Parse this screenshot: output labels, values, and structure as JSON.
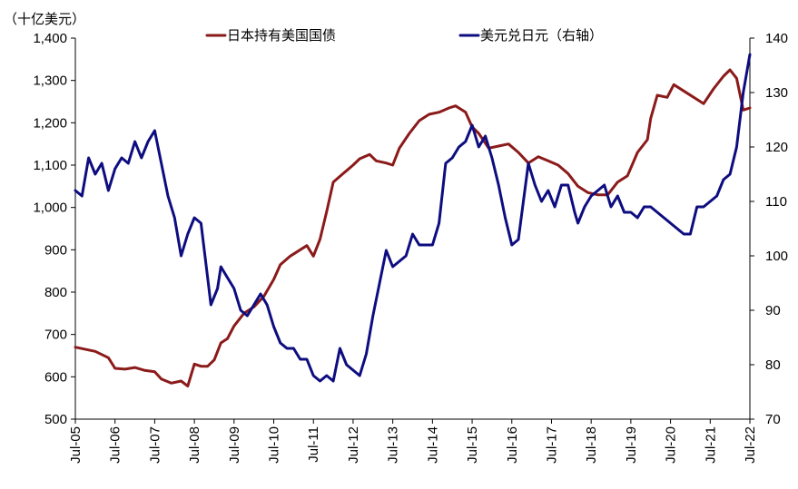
{
  "chart_data": {
    "type": "line",
    "y_unit_label": "（十亿美元）",
    "x_tick_labels": [
      "Jul-05",
      "Jul-06",
      "Jul-07",
      "Jul-08",
      "Jul-09",
      "Jul-10",
      "Jul-11",
      "Jul-12",
      "Jul-13",
      "Jul-14",
      "Jul-15",
      "Jul-16",
      "Jul-17",
      "Jul-18",
      "Jul-19",
      "Jul-20",
      "Jul-21",
      "Jul-22"
    ],
    "x_range": [
      "2005-07",
      "2022-07"
    ],
    "y_left": {
      "min": 500,
      "max": 1400,
      "step": 100,
      "tick_labels": [
        "500",
        "600",
        "700",
        "800",
        "900",
        "1,000",
        "1,100",
        "1,200",
        "1,300",
        "1,400"
      ]
    },
    "y_right": {
      "min": 70,
      "max": 140,
      "step": 10,
      "tick_labels": [
        "70",
        "80",
        "90",
        "100",
        "110",
        "120",
        "130",
        "140"
      ]
    },
    "grid": false,
    "legend_position": "top",
    "series": [
      {
        "name": "日本持有美国国债",
        "axis": "left",
        "color": "#8b1a1a",
        "points": [
          [
            "2005-07",
            670
          ],
          [
            "2006-01",
            660
          ],
          [
            "2006-05",
            645
          ],
          [
            "2006-07",
            620
          ],
          [
            "2006-10",
            618
          ],
          [
            "2007-01",
            622
          ],
          [
            "2007-04",
            615
          ],
          [
            "2007-07",
            612
          ],
          [
            "2007-09",
            595
          ],
          [
            "2007-12",
            585
          ],
          [
            "2008-03",
            590
          ],
          [
            "2008-05",
            578
          ],
          [
            "2008-07",
            630
          ],
          [
            "2008-09",
            625
          ],
          [
            "2008-11",
            625
          ],
          [
            "2009-01",
            640
          ],
          [
            "2009-03",
            680
          ],
          [
            "2009-05",
            690
          ],
          [
            "2009-07",
            720
          ],
          [
            "2009-10",
            750
          ],
          [
            "2010-01",
            765
          ],
          [
            "2010-04",
            790
          ],
          [
            "2010-07",
            830
          ],
          [
            "2010-09",
            865
          ],
          [
            "2010-12",
            885
          ],
          [
            "2011-03",
            900
          ],
          [
            "2011-05",
            910
          ],
          [
            "2011-07",
            885
          ],
          [
            "2011-09",
            925
          ],
          [
            "2011-11",
            990
          ],
          [
            "2012-01",
            1060
          ],
          [
            "2012-04",
            1080
          ],
          [
            "2012-07",
            1100
          ],
          [
            "2012-09",
            1115
          ],
          [
            "2012-12",
            1125
          ],
          [
            "2013-02",
            1110
          ],
          [
            "2013-05",
            1105
          ],
          [
            "2013-07",
            1100
          ],
          [
            "2013-09",
            1140
          ],
          [
            "2013-12",
            1175
          ],
          [
            "2014-03",
            1205
          ],
          [
            "2014-06",
            1220
          ],
          [
            "2014-09",
            1225
          ],
          [
            "2014-12",
            1235
          ],
          [
            "2015-02",
            1240
          ],
          [
            "2015-05",
            1225
          ],
          [
            "2015-07",
            1190
          ],
          [
            "2015-09",
            1175
          ],
          [
            "2015-12",
            1140
          ],
          [
            "2016-03",
            1145
          ],
          [
            "2016-06",
            1150
          ],
          [
            "2016-09",
            1130
          ],
          [
            "2016-12",
            1105
          ],
          [
            "2017-03",
            1120
          ],
          [
            "2017-06",
            1110
          ],
          [
            "2017-09",
            1100
          ],
          [
            "2017-12",
            1080
          ],
          [
            "2018-03",
            1050
          ],
          [
            "2018-06",
            1035
          ],
          [
            "2018-09",
            1030
          ],
          [
            "2018-12",
            1030
          ],
          [
            "2019-03",
            1060
          ],
          [
            "2019-06",
            1075
          ],
          [
            "2019-09",
            1130
          ],
          [
            "2019-12",
            1160
          ],
          [
            "2020-01",
            1210
          ],
          [
            "2020-03",
            1265
          ],
          [
            "2020-06",
            1260
          ],
          [
            "2020-08",
            1290
          ],
          [
            "2020-11",
            1275
          ],
          [
            "2021-02",
            1260
          ],
          [
            "2021-05",
            1245
          ],
          [
            "2021-08",
            1280
          ],
          [
            "2021-11",
            1310
          ],
          [
            "2022-01",
            1325
          ],
          [
            "2022-03",
            1305
          ],
          [
            "2022-05",
            1230
          ],
          [
            "2022-07",
            1235
          ]
        ]
      },
      {
        "name": "美元兑日元（右轴）",
        "axis": "right",
        "color": "#0d0d80",
        "points": [
          [
            "2005-07",
            112
          ],
          [
            "2005-09",
            111
          ],
          [
            "2005-11",
            118
          ],
          [
            "2006-01",
            115
          ],
          [
            "2006-03",
            117
          ],
          [
            "2006-05",
            112
          ],
          [
            "2006-07",
            116
          ],
          [
            "2006-09",
            118
          ],
          [
            "2006-11",
            117
          ],
          [
            "2007-01",
            121
          ],
          [
            "2007-03",
            118
          ],
          [
            "2007-05",
            121
          ],
          [
            "2007-07",
            123
          ],
          [
            "2007-09",
            117
          ],
          [
            "2007-11",
            111
          ],
          [
            "2008-01",
            107
          ],
          [
            "2008-03",
            100
          ],
          [
            "2008-05",
            104
          ],
          [
            "2008-07",
            107
          ],
          [
            "2008-09",
            106
          ],
          [
            "2008-11",
            96
          ],
          [
            "2008-12",
            91
          ],
          [
            "2009-02",
            94
          ],
          [
            "2009-03",
            98
          ],
          [
            "2009-05",
            96
          ],
          [
            "2009-07",
            94
          ],
          [
            "2009-09",
            90
          ],
          [
            "2009-11",
            89
          ],
          [
            "2010-01",
            91
          ],
          [
            "2010-03",
            93
          ],
          [
            "2010-05",
            91
          ],
          [
            "2010-07",
            87
          ],
          [
            "2010-09",
            84
          ],
          [
            "2010-11",
            83
          ],
          [
            "2011-01",
            83
          ],
          [
            "2011-03",
            81
          ],
          [
            "2011-05",
            81
          ],
          [
            "2011-07",
            78
          ],
          [
            "2011-09",
            77
          ],
          [
            "2011-11",
            78
          ],
          [
            "2012-01",
            77
          ],
          [
            "2012-03",
            83
          ],
          [
            "2012-05",
            80
          ],
          [
            "2012-07",
            79
          ],
          [
            "2012-09",
            78
          ],
          [
            "2012-11",
            82
          ],
          [
            "2013-01",
            89
          ],
          [
            "2013-03",
            95
          ],
          [
            "2013-05",
            101
          ],
          [
            "2013-07",
            98
          ],
          [
            "2013-09",
            99
          ],
          [
            "2013-11",
            100
          ],
          [
            "2014-01",
            104
          ],
          [
            "2014-03",
            102
          ],
          [
            "2014-05",
            102
          ],
          [
            "2014-07",
            102
          ],
          [
            "2014-09",
            106
          ],
          [
            "2014-11",
            117
          ],
          [
            "2015-01",
            118
          ],
          [
            "2015-03",
            120
          ],
          [
            "2015-05",
            121
          ],
          [
            "2015-07",
            124
          ],
          [
            "2015-09",
            120
          ],
          [
            "2015-11",
            122
          ],
          [
            "2016-01",
            118
          ],
          [
            "2016-03",
            113
          ],
          [
            "2016-05",
            107
          ],
          [
            "2016-07",
            102
          ],
          [
            "2016-09",
            103
          ],
          [
            "2016-12",
            117
          ],
          [
            "2017-02",
            113
          ],
          [
            "2017-04",
            110
          ],
          [
            "2017-06",
            112
          ],
          [
            "2017-08",
            109
          ],
          [
            "2017-10",
            113
          ],
          [
            "2017-12",
            113
          ],
          [
            "2018-02",
            108
          ],
          [
            "2018-03",
            106
          ],
          [
            "2018-05",
            109
          ],
          [
            "2018-07",
            111
          ],
          [
            "2018-09",
            112
          ],
          [
            "2018-11",
            113
          ],
          [
            "2019-01",
            109
          ],
          [
            "2019-03",
            111
          ],
          [
            "2019-05",
            108
          ],
          [
            "2019-07",
            108
          ],
          [
            "2019-09",
            107
          ],
          [
            "2019-11",
            109
          ],
          [
            "2020-01",
            109
          ],
          [
            "2020-03",
            108
          ],
          [
            "2020-05",
            107
          ],
          [
            "2020-07",
            106
          ],
          [
            "2020-09",
            105
          ],
          [
            "2020-11",
            104
          ],
          [
            "2021-01",
            104
          ],
          [
            "2021-03",
            109
          ],
          [
            "2021-05",
            109
          ],
          [
            "2021-07",
            110
          ],
          [
            "2021-09",
            111
          ],
          [
            "2021-11",
            114
          ],
          [
            "2022-01",
            115
          ],
          [
            "2022-03",
            120
          ],
          [
            "2022-05",
            130
          ],
          [
            "2022-07",
            137
          ]
        ]
      }
    ]
  }
}
